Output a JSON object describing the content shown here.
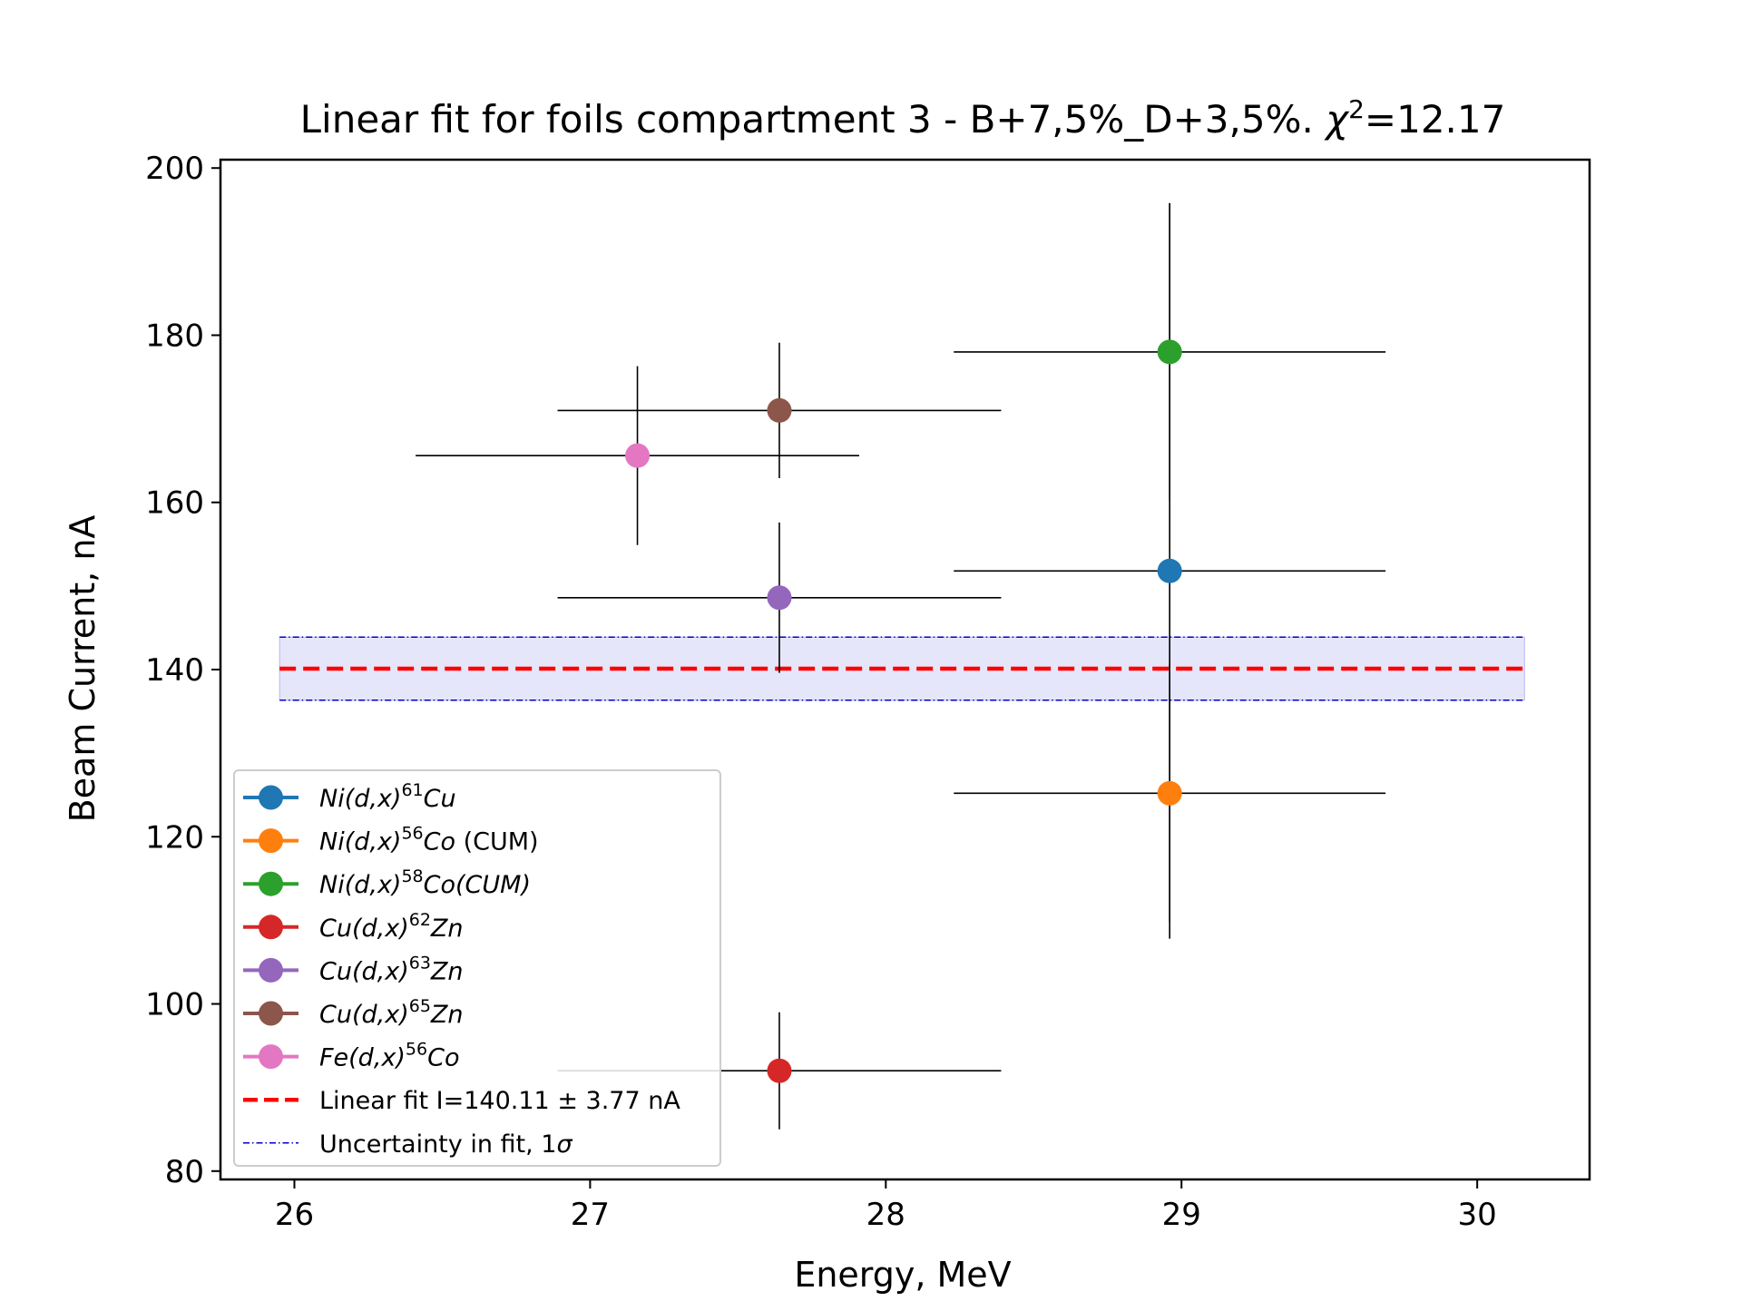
{
  "chart_data": {
    "type": "scatter",
    "title": {
      "main": "Linear fit for foils compartment 3 - B+7,5%_D+3,5%. ",
      "chi_symbol": "χ",
      "chi_sup": "2",
      "chi_value": "=12.17"
    },
    "xlabel": "Energy, MeV",
    "ylabel": "Beam Current, nA",
    "xlim": [
      25.75,
      30.38
    ],
    "ylim": [
      79,
      201
    ],
    "xticks": [
      26,
      27,
      28,
      29,
      30
    ],
    "yticks": [
      80,
      100,
      120,
      140,
      160,
      180,
      200
    ],
    "grid": false,
    "legend_position": "lower left",
    "series": [
      {
        "name_base": "Ni(d,x)",
        "name_sup": "61",
        "name_prod": "Cu",
        "name_suffix": "",
        "color": "#1f77b4",
        "x": 28.96,
        "y": 151.8,
        "xerr": 0.73,
        "yerr": 44.0
      },
      {
        "name_base": "Ni(d,x)",
        "name_sup": "56",
        "name_prod": "Co",
        "name_suffix": " (CUM)",
        "color": "#ff7f0e",
        "x": 28.96,
        "y": 125.2,
        "xerr": 0.73,
        "yerr": 15.4
      },
      {
        "name_base": "Ni(d,x)",
        "name_sup": "58",
        "name_prod": "Co(CUM)",
        "name_suffix": "",
        "color": "#2ca02c",
        "x": 28.96,
        "y": 178.0,
        "xerr": 0.73,
        "yerr": 17.8
      },
      {
        "name_base": "Cu(d,x)",
        "name_sup": "62",
        "name_prod": "Zn",
        "name_suffix": "",
        "color": "#d62728",
        "x": 27.64,
        "y": 92.0,
        "xerr": 0.75,
        "yerr": 7.0
      },
      {
        "name_base": "Cu(d,x)",
        "name_sup": "63",
        "name_prod": "Zn",
        "name_suffix": "",
        "color": "#9467bd",
        "x": 27.64,
        "y": 148.6,
        "xerr": 0.75,
        "yerr": 9.0
      },
      {
        "name_base": "Cu(d,x)",
        "name_sup": "65",
        "name_prod": "Zn",
        "name_suffix": "",
        "color": "#8c564b",
        "x": 27.64,
        "y": 171.0,
        "xerr": 0.75,
        "yerr": 8.1
      },
      {
        "name_base": "Fe(d,x)",
        "name_sup": "56",
        "name_prod": "Co",
        "name_suffix": "",
        "color": "#e377c2",
        "x": 27.16,
        "y": 165.6,
        "xerr": 0.75,
        "yerr": 10.7
      }
    ],
    "fit": {
      "label": "Linear fit I=140.11 ± 3.77 nA",
      "value": 140.11,
      "sigma": 3.77,
      "x_range": [
        25.95,
        30.16
      ],
      "color": "#ff0000"
    },
    "uncertainty": {
      "label_prefix": "Uncertainty in fit, 1",
      "label_symbol": "σ",
      "color": "#0000cc",
      "fill_color": "#e6e6fa"
    }
  }
}
